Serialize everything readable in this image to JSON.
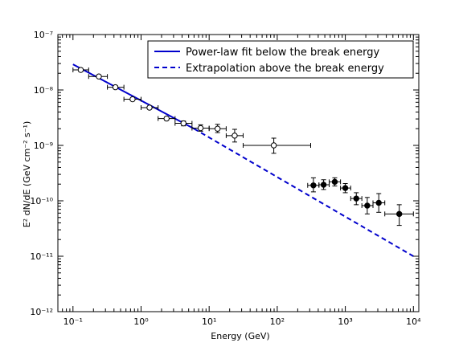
{
  "chart_data": {
    "type": "scatter",
    "title": "",
    "xlabel": "Energy (GeV)",
    "ylabel": "E² dN/dE (GeV cm⁻² s⁻¹)",
    "x_scale": "log",
    "y_scale": "log",
    "xlim": [
      0.06,
      12000
    ],
    "ylim": [
      1e-12,
      1e-07
    ],
    "x_ticks": [
      {
        "value": 0.1,
        "label": "10⁻¹"
      },
      {
        "value": 1,
        "label": "10⁰"
      },
      {
        "value": 10,
        "label": "10¹"
      },
      {
        "value": 100,
        "label": "10²"
      },
      {
        "value": 1000,
        "label": "10³"
      },
      {
        "value": 10000,
        "label": "10⁴"
      }
    ],
    "y_ticks": [
      {
        "value": 1e-12,
        "label": "10⁻¹²"
      },
      {
        "value": 1e-11,
        "label": "10⁻¹¹"
      },
      {
        "value": 1e-10,
        "label": "10⁻¹⁰"
      },
      {
        "value": 1e-09,
        "label": "10⁻⁹"
      },
      {
        "value": 1e-08,
        "label": "10⁻⁸"
      },
      {
        "value": 1e-07,
        "label": "10⁻⁷"
      }
    ],
    "grid": false,
    "legend_position": "top-right",
    "legend": [
      {
        "label": "Power-law fit below the break energy",
        "style": "solid",
        "color": "#0000cc"
      },
      {
        "label": "Extrapolation above the break energy",
        "style": "dashed",
        "color": "#0000cc"
      }
    ],
    "lines": [
      {
        "name": "Power-law fit below the break energy",
        "style": "solid",
        "color": "#0000cc",
        "x": [
          0.1,
          6
        ],
        "y": [
          2.9e-08,
          2e-09
        ]
      },
      {
        "name": "Extrapolation above the break energy",
        "style": "dashed",
        "color": "#0000cc",
        "x": [
          6,
          10000
        ],
        "y": [
          2e-09,
          1e-11
        ]
      }
    ],
    "series": [
      {
        "name": "open",
        "marker": "open-circle",
        "points": [
          {
            "x": 0.13,
            "y": 2.3e-08,
            "xlo": 0.1,
            "xhi": 0.17,
            "ylo": 2.15e-08,
            "yhi": 2.45e-08
          },
          {
            "x": 0.24,
            "y": 1.75e-08,
            "xlo": 0.17,
            "xhi": 0.32,
            "ylo": 1.65e-08,
            "yhi": 1.85e-08
          },
          {
            "x": 0.42,
            "y": 1.12e-08,
            "xlo": 0.32,
            "xhi": 0.56,
            "ylo": 1.05e-08,
            "yhi": 1.2e-08
          },
          {
            "x": 0.75,
            "y": 6.8e-09,
            "xlo": 0.56,
            "xhi": 1.0,
            "ylo": 6.4e-09,
            "yhi": 7.2e-09
          },
          {
            "x": 1.33,
            "y": 4.8e-09,
            "xlo": 1.0,
            "xhi": 1.78,
            "ylo": 4.5e-09,
            "yhi": 5.1e-09
          },
          {
            "x": 2.37,
            "y": 3.05e-09,
            "xlo": 1.78,
            "xhi": 3.16,
            "ylo": 2.85e-09,
            "yhi": 3.25e-09
          },
          {
            "x": 4.2,
            "y": 2.5e-09,
            "xlo": 3.16,
            "xhi": 5.6,
            "ylo": 2.25e-09,
            "yhi": 2.75e-09
          },
          {
            "x": 7.5,
            "y": 2.05e-09,
            "xlo": 5.6,
            "xhi": 10,
            "ylo": 1.8e-09,
            "yhi": 2.35e-09
          },
          {
            "x": 13.3,
            "y": 2e-09,
            "xlo": 10,
            "xhi": 17.8,
            "ylo": 1.7e-09,
            "yhi": 2.4e-09
          },
          {
            "x": 23.7,
            "y": 1.5e-09,
            "xlo": 17.8,
            "xhi": 31.6,
            "ylo": 1.15e-09,
            "yhi": 1.95e-09
          },
          {
            "x": 89,
            "y": 1e-09,
            "xlo": 31.6,
            "xhi": 310,
            "ylo": 7.2e-10,
            "yhi": 1.35e-09
          }
        ]
      },
      {
        "name": "filled",
        "marker": "filled-circle",
        "points": [
          {
            "x": 340,
            "y": 1.9e-10,
            "xlo": 280,
            "xhi": 410,
            "ylo": 1.45e-10,
            "yhi": 2.6e-10
          },
          {
            "x": 480,
            "y": 1.95e-10,
            "xlo": 410,
            "xhi": 580,
            "ylo": 1.6e-10,
            "yhi": 2.4e-10
          },
          {
            "x": 700,
            "y": 2.2e-10,
            "xlo": 580,
            "xhi": 850,
            "ylo": 1.85e-10,
            "yhi": 2.6e-10
          },
          {
            "x": 1000,
            "y": 1.7e-10,
            "xlo": 850,
            "xhi": 1200,
            "ylo": 1.4e-10,
            "yhi": 2.05e-10
          },
          {
            "x": 1450,
            "y": 1.1e-10,
            "xlo": 1200,
            "xhi": 1750,
            "ylo": 8.5e-11,
            "yhi": 1.4e-10
          },
          {
            "x": 2100,
            "y": 8.2e-11,
            "xlo": 1750,
            "xhi": 2550,
            "ylo": 5.8e-11,
            "yhi": 1.15e-10
          },
          {
            "x": 3100,
            "y": 9.2e-11,
            "xlo": 2550,
            "xhi": 3800,
            "ylo": 6.2e-11,
            "yhi": 1.35e-10
          },
          {
            "x": 6200,
            "y": 5.8e-11,
            "xlo": 3800,
            "xhi": 10000,
            "ylo": 3.6e-11,
            "yhi": 8.5e-11
          }
        ]
      }
    ]
  }
}
